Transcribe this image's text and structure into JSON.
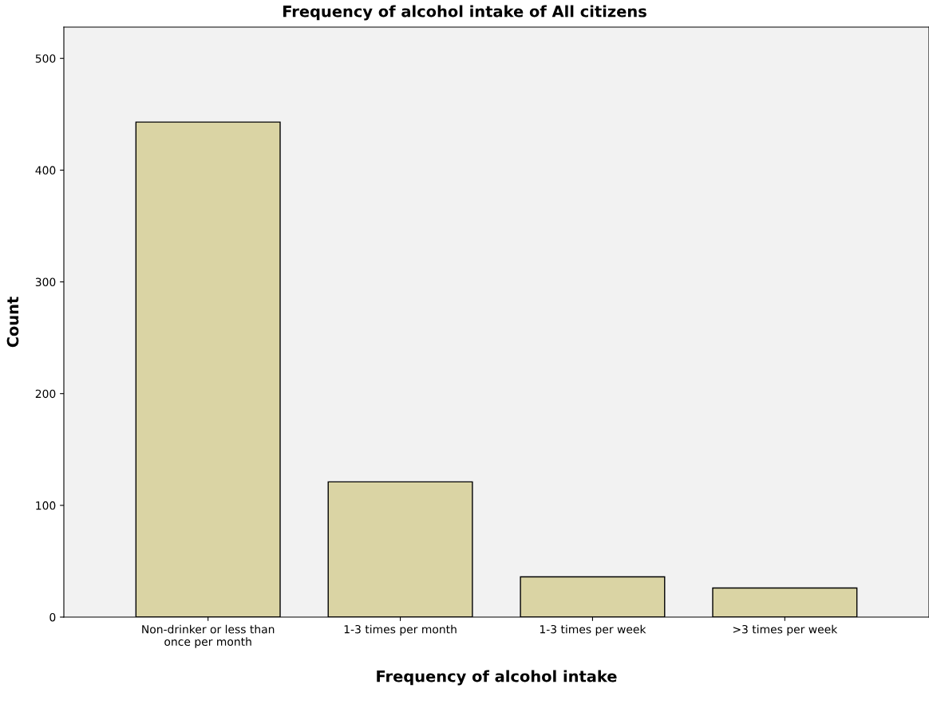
{
  "chart_data": {
    "type": "bar",
    "title": "Frequency of alcohol intake of All citizens",
    "xlabel": "Frequency of alcohol intake",
    "ylabel": "Count",
    "categories": [
      "Non-drinker or less than\nonce per month",
      "1-3 times per month",
      "1-3 times per week",
      ">3 times per week"
    ],
    "values": [
      443,
      121,
      36,
      26
    ],
    "color": "#dad4a4",
    "ylim": [
      0,
      528
    ],
    "yticks": [
      0,
      100,
      200,
      300,
      400,
      500
    ],
    "grid": false
  }
}
